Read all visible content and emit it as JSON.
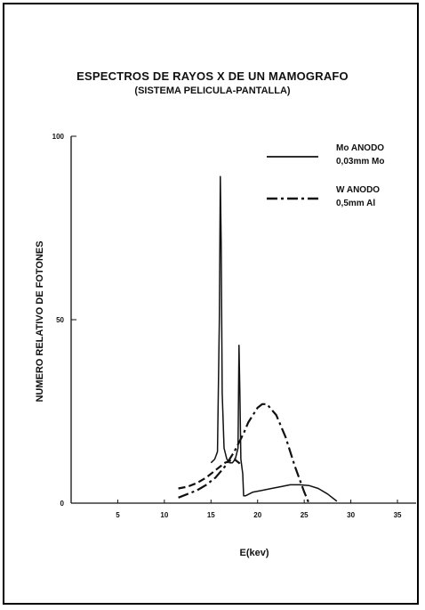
{
  "chart_data": {
    "type": "line",
    "title": "ESPECTROS DE RAYOS X DE UN MAMOGRAFO",
    "subtitle": "(SISTEMA PELICULA-PANTALLA)",
    "xlabel": "E(kev)",
    "ylabel": "NUMERO RELATIVO DE FOTONES",
    "xlim": [
      0,
      37
    ],
    "ylim": [
      0,
      100
    ],
    "x_ticks": [
      5,
      10,
      15,
      20,
      25,
      30,
      35
    ],
    "y_ticks": [
      0,
      50,
      100
    ],
    "legend_position": "top-right",
    "series": [
      {
        "name": "Mo ANODO 0,03mm Mo",
        "line_style": "solid",
        "x": [
          15.0,
          15.4,
          15.7,
          15.9,
          16.0,
          16.1,
          16.2,
          16.4,
          16.7,
          17.0,
          17.3,
          17.6,
          17.9,
          18.0,
          18.1,
          18.2,
          18.4,
          18.5,
          18.7,
          19.5,
          20.5,
          21.5,
          22.5,
          23.5,
          24.5,
          25.5,
          26.5,
          27.5,
          28.5
        ],
        "y": [
          11,
          12,
          14,
          50,
          89,
          70,
          30,
          15,
          12,
          11,
          11,
          12,
          15,
          43,
          30,
          12,
          8,
          2,
          2,
          3,
          3.5,
          4,
          4.5,
          5,
          5,
          4.8,
          4,
          2.5,
          0.5
        ]
      },
      {
        "name": "W ANODO 0,5mm Al",
        "line_style": "dash-dot",
        "x": [
          11.5,
          12.5,
          13.5,
          14.5,
          15.5,
          16.5,
          17.5,
          18.5,
          19.0,
          20.0,
          20.5,
          21.0,
          22.0,
          23.0,
          24.0,
          25.0,
          25.5
        ],
        "y": [
          1.5,
          2.5,
          3.5,
          5,
          7,
          10,
          14,
          19,
          22,
          26,
          27,
          27,
          24,
          18,
          10,
          3,
          0
        ]
      },
      {
        "name": "",
        "line_style": "dashed",
        "x": [
          11.5,
          12.5,
          13.5,
          14.5,
          15.5,
          16.5,
          17.5,
          18.0,
          18.3
        ],
        "y": [
          4,
          4.5,
          5.5,
          7,
          9,
          11,
          12,
          11,
          10
        ]
      }
    ]
  }
}
